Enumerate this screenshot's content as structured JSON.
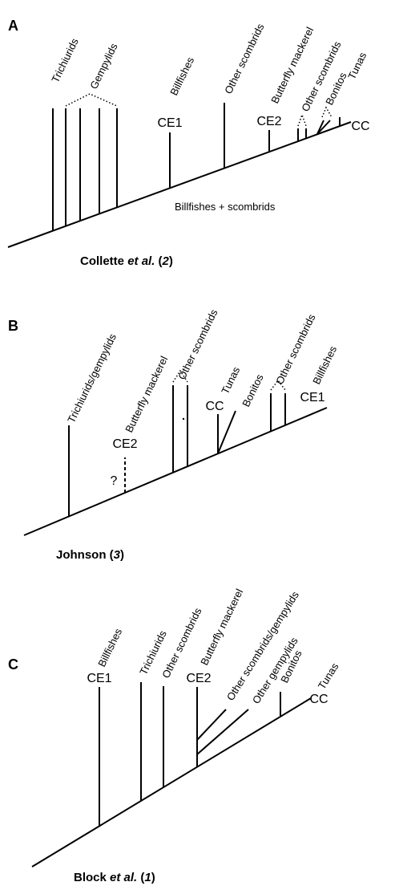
{
  "panels": [
    {
      "letter": "A",
      "taxa": [
        "Trichiurids",
        "Gempylids",
        "Billfishes",
        "Other scombrids",
        "Butterfly mackerel",
        "Other scombrids",
        "Bonitos",
        "Tunas"
      ],
      "markers": [
        "CE1",
        "CE2",
        "CC"
      ],
      "node_label": "Billfishes + scombrids",
      "citation": [
        {
          "text": "Collette ",
          "italic": false
        },
        {
          "text": "et al.",
          "italic": true
        },
        {
          "text": " (",
          "italic": false
        },
        {
          "text": "2",
          "italic": true
        },
        {
          "text": ")",
          "italic": false
        }
      ]
    },
    {
      "letter": "B",
      "taxa": [
        "Trichiurids/gempylids",
        "Butterfly mackerel",
        "Other scombrids",
        "Tunas",
        "Bonitos",
        "Other scombrids",
        "Billfishes"
      ],
      "markers": [
        "CE2",
        "?",
        "CC",
        "CE1"
      ],
      "citation": [
        {
          "text": "Johnson (",
          "italic": false
        },
        {
          "text": "3",
          "italic": true
        },
        {
          "text": ")",
          "italic": false
        }
      ]
    },
    {
      "letter": "C",
      "taxa": [
        "Billfishes",
        "Trichiurids",
        "Other scombrids",
        "Butterfly mackerel",
        "Other scombrids/gempylids",
        "Other gempylids",
        "Bonitos",
        "Tunas"
      ],
      "markers": [
        "CE1",
        "CE2",
        "CC"
      ],
      "citation": [
        {
          "text": "Block ",
          "italic": false
        },
        {
          "text": "et al.",
          "italic": true
        },
        {
          "text": " (",
          "italic": false
        },
        {
          "text": "1",
          "italic": true
        },
        {
          "text": ")",
          "italic": false
        }
      ]
    }
  ]
}
